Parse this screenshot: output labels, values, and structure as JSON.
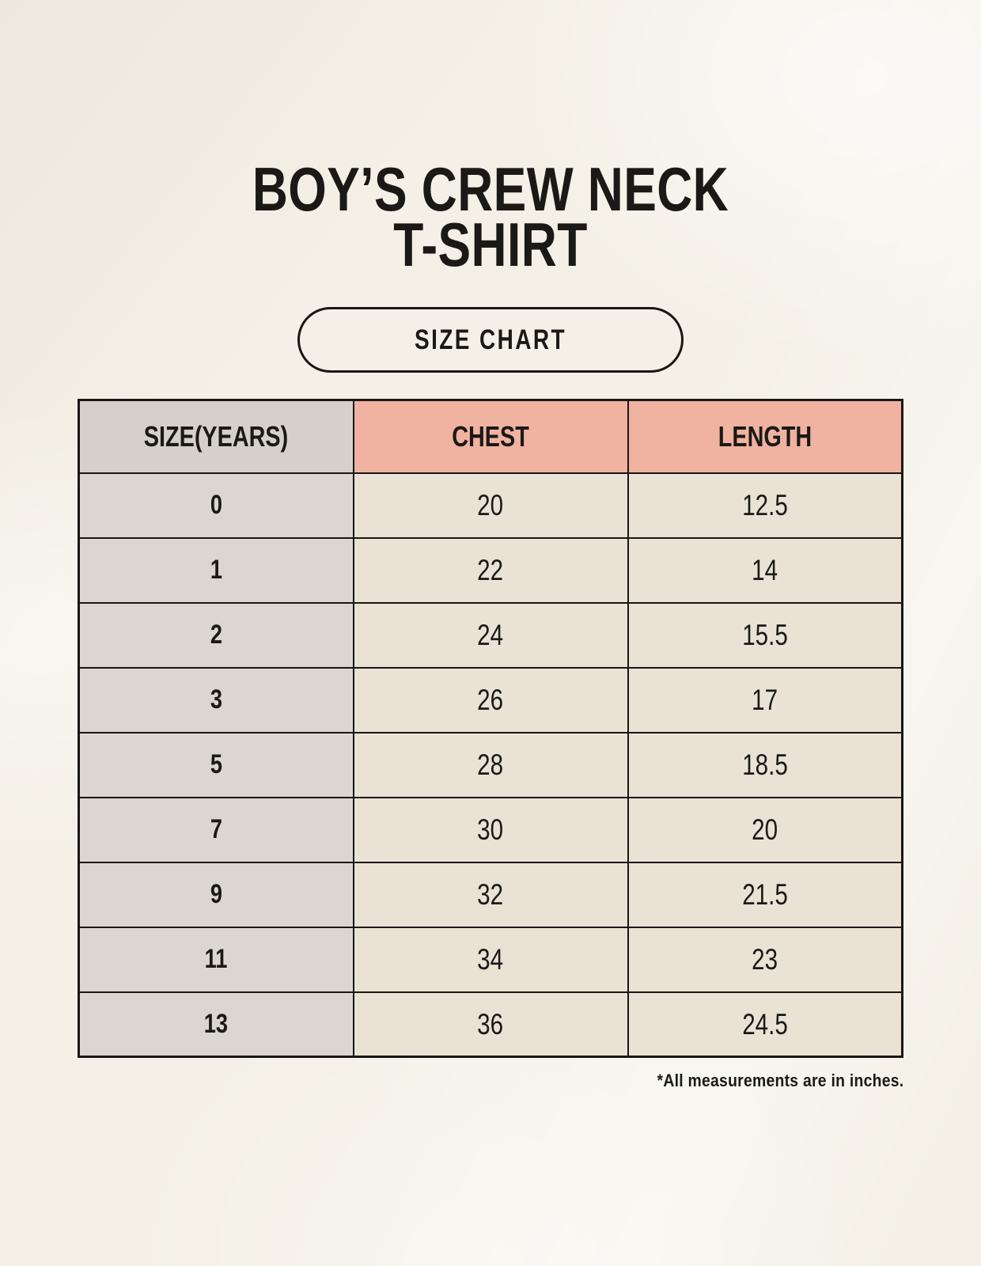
{
  "header": {
    "title_line1": "BOY’S CREW NECK",
    "title_line2": "T-SHIRT",
    "badge_label": "SIZE CHART"
  },
  "table": {
    "columns": [
      "SIZE(YEARS)",
      "CHEST",
      "LENGTH"
    ],
    "rows": [
      {
        "size": "0",
        "chest": "20",
        "length": "12.5"
      },
      {
        "size": "1",
        "chest": "22",
        "length": "14"
      },
      {
        "size": "2",
        "chest": "24",
        "length": "15.5"
      },
      {
        "size": "3",
        "chest": "26",
        "length": "17"
      },
      {
        "size": "5",
        "chest": "28",
        "length": "18.5"
      },
      {
        "size": "7",
        "chest": "30",
        "length": "20"
      },
      {
        "size": "9",
        "chest": "32",
        "length": "21.5"
      },
      {
        "size": "11",
        "chest": "34",
        "length": "23"
      },
      {
        "size": "13",
        "chest": "36",
        "length": "24.5"
      }
    ],
    "footnote": "*All measurements are in inches."
  },
  "colors": {
    "background": "#f4f0e7",
    "header_accent_bg": "#f0b3a1",
    "header_size_bg": "#d6d0ca",
    "row_label_bg": "#dcd6d0",
    "cell_bg": "#e9e2d5",
    "border": "#191715",
    "text": "#1b1916"
  }
}
